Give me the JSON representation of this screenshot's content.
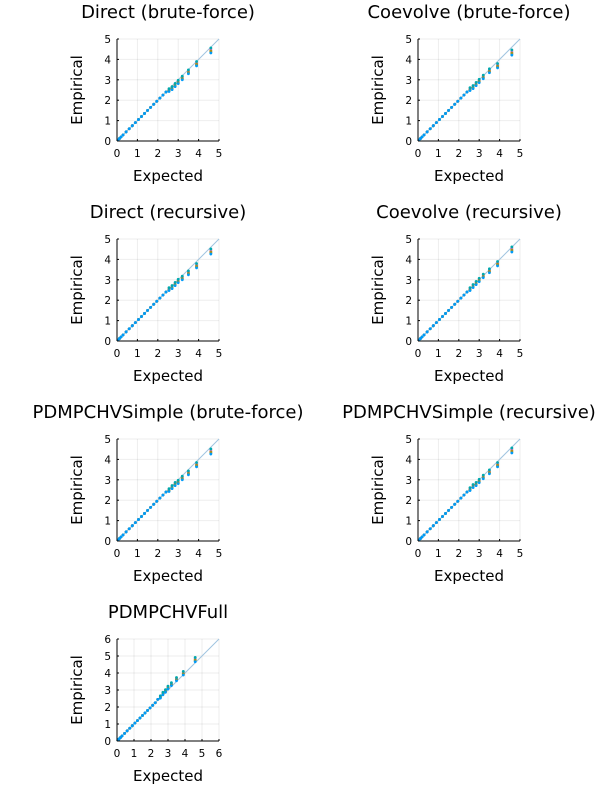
{
  "colors": [
    "#e26f46",
    "#3da44d",
    "#c271d2",
    "#ac8d18",
    "#00a9ad",
    "#009af9"
  ],
  "reference_line_color": "#a0c4e0",
  "chart_data": [
    {
      "type": "scatter",
      "title": "Direct (brute-force)",
      "xlabel": "Expected",
      "ylabel": "Empirical",
      "xlim": [
        0,
        5
      ],
      "ylim": [
        0,
        5
      ],
      "xticks": [
        "0",
        "1",
        "2",
        "3",
        "4",
        "5"
      ],
      "yticks": [
        "0",
        "1",
        "2",
        "3",
        "4",
        "5"
      ],
      "grid": true,
      "legend": "none",
      "x": [
        0.05,
        0.12,
        0.2,
        0.3,
        0.45,
        0.6,
        0.75,
        0.9,
        1.05,
        1.2,
        1.35,
        1.5,
        1.65,
        1.8,
        1.95,
        2.1,
        2.25,
        2.4,
        2.55,
        2.7,
        2.85,
        3.0,
        3.2,
        3.5,
        3.9,
        4.6
      ],
      "y": [
        0.05,
        0.12,
        0.2,
        0.3,
        0.45,
        0.6,
        0.75,
        0.9,
        1.05,
        1.2,
        1.35,
        1.5,
        1.65,
        1.8,
        1.95,
        2.1,
        2.25,
        2.4,
        2.5,
        2.6,
        2.75,
        2.9,
        3.1,
        3.4,
        3.8,
        4.45
      ]
    },
    {
      "type": "scatter",
      "title": "Coevolve (brute-force)",
      "xlabel": "Expected",
      "ylabel": "Empirical",
      "xlim": [
        0,
        5
      ],
      "ylim": [
        0,
        5
      ],
      "xticks": [
        "0",
        "1",
        "2",
        "3",
        "4",
        "5"
      ],
      "yticks": [
        "0",
        "1",
        "2",
        "3",
        "4",
        "5"
      ],
      "grid": true,
      "legend": "none",
      "x": [
        0.05,
        0.12,
        0.2,
        0.3,
        0.45,
        0.6,
        0.75,
        0.9,
        1.05,
        1.2,
        1.35,
        1.5,
        1.65,
        1.8,
        1.95,
        2.1,
        2.25,
        2.4,
        2.55,
        2.7,
        2.85,
        3.0,
        3.2,
        3.5,
        3.9,
        4.6
      ],
      "y": [
        0.05,
        0.12,
        0.2,
        0.3,
        0.45,
        0.6,
        0.75,
        0.9,
        1.05,
        1.2,
        1.35,
        1.5,
        1.65,
        1.8,
        1.95,
        2.1,
        2.25,
        2.4,
        2.55,
        2.65,
        2.8,
        2.95,
        3.15,
        3.45,
        3.7,
        4.35
      ]
    },
    {
      "type": "scatter",
      "title": "Direct (recursive)",
      "xlabel": "Expected",
      "ylabel": "Empirical",
      "xlim": [
        0,
        5
      ],
      "ylim": [
        0,
        5
      ],
      "xticks": [
        "0",
        "1",
        "2",
        "3",
        "4",
        "5"
      ],
      "yticks": [
        "0",
        "1",
        "2",
        "3",
        "4",
        "5"
      ],
      "grid": true,
      "legend": "none",
      "x": [
        0.05,
        0.12,
        0.2,
        0.3,
        0.45,
        0.6,
        0.75,
        0.9,
        1.05,
        1.2,
        1.35,
        1.5,
        1.65,
        1.8,
        1.95,
        2.1,
        2.25,
        2.4,
        2.55,
        2.7,
        2.85,
        3.0,
        3.2,
        3.5,
        3.9,
        4.6
      ],
      "y": [
        0.05,
        0.12,
        0.2,
        0.3,
        0.45,
        0.6,
        0.75,
        0.9,
        1.05,
        1.2,
        1.35,
        1.5,
        1.65,
        1.8,
        1.95,
        2.1,
        2.25,
        2.4,
        2.55,
        2.65,
        2.8,
        2.95,
        3.1,
        3.35,
        3.7,
        4.4
      ]
    },
    {
      "type": "scatter",
      "title": "Coevolve (recursive)",
      "xlabel": "Expected",
      "ylabel": "Empirical",
      "xlim": [
        0,
        5
      ],
      "ylim": [
        0,
        5
      ],
      "xticks": [
        "0",
        "1",
        "2",
        "3",
        "4",
        "5"
      ],
      "yticks": [
        "0",
        "1",
        "2",
        "3",
        "4",
        "5"
      ],
      "grid": true,
      "legend": "none",
      "x": [
        0.05,
        0.12,
        0.2,
        0.3,
        0.45,
        0.6,
        0.75,
        0.9,
        1.05,
        1.2,
        1.35,
        1.5,
        1.65,
        1.8,
        1.95,
        2.1,
        2.25,
        2.4,
        2.55,
        2.7,
        2.85,
        3.0,
        3.2,
        3.5,
        3.9,
        4.6
      ],
      "y": [
        0.05,
        0.12,
        0.2,
        0.3,
        0.45,
        0.6,
        0.75,
        0.9,
        1.05,
        1.2,
        1.35,
        1.5,
        1.65,
        1.8,
        1.95,
        2.1,
        2.25,
        2.4,
        2.55,
        2.7,
        2.85,
        3.0,
        3.2,
        3.45,
        3.8,
        4.5
      ]
    },
    {
      "type": "scatter",
      "title": "PDMPCHVSimple (brute-force)",
      "xlabel": "Expected",
      "ylabel": "Empirical",
      "xlim": [
        0,
        5
      ],
      "ylim": [
        0,
        5
      ],
      "xticks": [
        "0",
        "1",
        "2",
        "3",
        "4",
        "5"
      ],
      "yticks": [
        "0",
        "1",
        "2",
        "3",
        "4",
        "5"
      ],
      "grid": true,
      "legend": "none",
      "x": [
        0.05,
        0.12,
        0.2,
        0.3,
        0.45,
        0.6,
        0.75,
        0.9,
        1.05,
        1.2,
        1.35,
        1.5,
        1.65,
        1.8,
        1.95,
        2.1,
        2.25,
        2.4,
        2.55,
        2.7,
        2.85,
        3.0,
        3.2,
        3.5,
        3.9,
        4.6
      ],
      "y": [
        0.05,
        0.12,
        0.2,
        0.3,
        0.45,
        0.6,
        0.75,
        0.9,
        1.05,
        1.2,
        1.35,
        1.5,
        1.65,
        1.8,
        1.95,
        2.1,
        2.25,
        2.4,
        2.5,
        2.65,
        2.8,
        2.9,
        3.1,
        3.35,
        3.75,
        4.4
      ]
    },
    {
      "type": "scatter",
      "title": "PDMPCHVSimple (recursive)",
      "xlabel": "Expected",
      "ylabel": "Empirical",
      "xlim": [
        0,
        5
      ],
      "ylim": [
        0,
        5
      ],
      "xticks": [
        "0",
        "1",
        "2",
        "3",
        "4",
        "5"
      ],
      "yticks": [
        "0",
        "1",
        "2",
        "3",
        "4",
        "5"
      ],
      "grid": true,
      "legend": "none",
      "x": [
        0.05,
        0.12,
        0.2,
        0.3,
        0.45,
        0.6,
        0.75,
        0.9,
        1.05,
        1.2,
        1.35,
        1.5,
        1.65,
        1.8,
        1.95,
        2.1,
        2.25,
        2.4,
        2.55,
        2.7,
        2.85,
        3.0,
        3.2,
        3.5,
        3.9,
        4.6
      ],
      "y": [
        0.05,
        0.12,
        0.2,
        0.3,
        0.45,
        0.6,
        0.75,
        0.9,
        1.05,
        1.2,
        1.35,
        1.5,
        1.65,
        1.8,
        1.95,
        2.1,
        2.25,
        2.4,
        2.55,
        2.7,
        2.8,
        2.95,
        3.15,
        3.4,
        3.75,
        4.45
      ]
    },
    {
      "type": "scatter",
      "title": "PDMPCHVFull",
      "xlabel": "Expected",
      "ylabel": "Empirical",
      "xlim": [
        0,
        6
      ],
      "ylim": [
        0,
        6
      ],
      "xticks": [
        "0",
        "1",
        "2",
        "3",
        "4",
        "5",
        "6"
      ],
      "yticks": [
        "0",
        "1",
        "2",
        "3",
        "4",
        "5",
        "6"
      ],
      "grid": true,
      "legend": "none",
      "x": [
        0.05,
        0.12,
        0.2,
        0.3,
        0.45,
        0.6,
        0.75,
        0.9,
        1.05,
        1.2,
        1.35,
        1.5,
        1.65,
        1.8,
        1.95,
        2.1,
        2.25,
        2.4,
        2.55,
        2.7,
        2.85,
        3.0,
        3.2,
        3.5,
        3.9,
        4.6
      ],
      "y": [
        0.05,
        0.12,
        0.2,
        0.3,
        0.45,
        0.6,
        0.75,
        0.9,
        1.05,
        1.2,
        1.35,
        1.5,
        1.65,
        1.8,
        1.95,
        2.1,
        2.25,
        2.45,
        2.6,
        2.8,
        2.95,
        3.15,
        3.35,
        3.65,
        4.0,
        4.8
      ]
    }
  ]
}
